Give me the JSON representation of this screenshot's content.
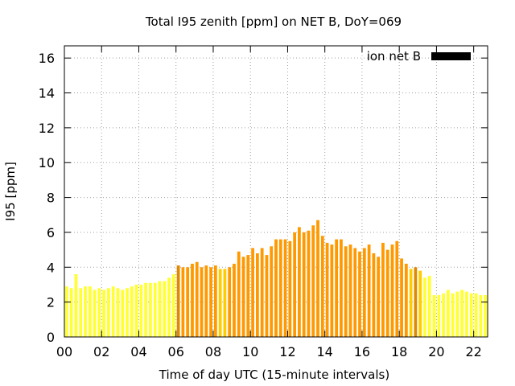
{
  "chart_data": {
    "type": "bar",
    "title": "Total I95 zenith [ppm] on NET B, DoY=069",
    "xlabel": "Time of day UTC (15-minute intervals)",
    "ylabel": "I95 [ppm]",
    "ylim": [
      0,
      16.7
    ],
    "xlim": [
      0,
      22.75
    ],
    "grid": true,
    "legend": {
      "label": "ion net B",
      "position": "top-right",
      "color": "#000000"
    },
    "x_ticks": [
      {
        "value": 0,
        "label": "00"
      },
      {
        "value": 2,
        "label": "02"
      },
      {
        "value": 4,
        "label": "04"
      },
      {
        "value": 6,
        "label": "06"
      },
      {
        "value": 8,
        "label": "08"
      },
      {
        "value": 10,
        "label": "10"
      },
      {
        "value": 12,
        "label": "12"
      },
      {
        "value": 14,
        "label": "14"
      },
      {
        "value": 16,
        "label": "16"
      },
      {
        "value": 18,
        "label": "18"
      },
      {
        "value": 20,
        "label": "20"
      },
      {
        "value": 22,
        "label": "22"
      }
    ],
    "y_ticks": [
      {
        "value": 0,
        "label": "0"
      },
      {
        "value": 2,
        "label": "2"
      },
      {
        "value": 4,
        "label": "4"
      },
      {
        "value": 6,
        "label": "6"
      },
      {
        "value": 8,
        "label": "8"
      },
      {
        "value": 10,
        "label": "10"
      },
      {
        "value": 12,
        "label": "12"
      },
      {
        "value": 14,
        "label": "14"
      },
      {
        "value": 16,
        "label": "16"
      }
    ],
    "interval_hours": 0.25,
    "values": [
      2.9,
      2.8,
      3.6,
      2.8,
      2.9,
      2.9,
      2.7,
      2.8,
      2.7,
      2.8,
      2.9,
      2.8,
      2.7,
      2.8,
      2.9,
      3.0,
      3.0,
      3.1,
      3.1,
      3.1,
      3.2,
      3.2,
      3.4,
      3.6,
      4.1,
      4.0,
      4.0,
      4.2,
      4.3,
      4.0,
      4.1,
      4.0,
      4.1,
      3.9,
      3.9,
      4.0,
      4.2,
      4.9,
      4.6,
      4.7,
      5.1,
      4.8,
      5.1,
      4.7,
      5.2,
      5.6,
      5.6,
      5.6,
      5.5,
      6.0,
      6.3,
      6.0,
      6.1,
      6.4,
      6.7,
      5.8,
      5.4,
      5.3,
      5.6,
      5.6,
      5.2,
      5.3,
      5.1,
      4.9,
      5.1,
      5.3,
      4.8,
      4.6,
      5.4,
      5.0,
      5.3,
      5.5,
      4.5,
      4.2,
      3.9,
      4.0,
      3.8,
      3.4,
      3.5,
      2.4,
      2.4,
      2.5,
      2.7,
      2.5,
      2.6,
      2.7,
      2.6,
      2.5,
      2.5,
      2.4,
      2.4
    ],
    "colors": {
      "low": "#ffff33",
      "mid": "#ffcc00",
      "high": "#ff9900",
      "peak": "#e08800"
    },
    "color_scale": [
      {
        "min": 0,
        "max": 3.7,
        "color": "#ffff33"
      },
      {
        "min": 3.7,
        "max": 3.95,
        "color": "#ffcc00"
      },
      {
        "min": 3.95,
        "max": 100,
        "color": "#ff9900"
      }
    ],
    "highlighted_bars": [
      24,
      75
    ]
  }
}
